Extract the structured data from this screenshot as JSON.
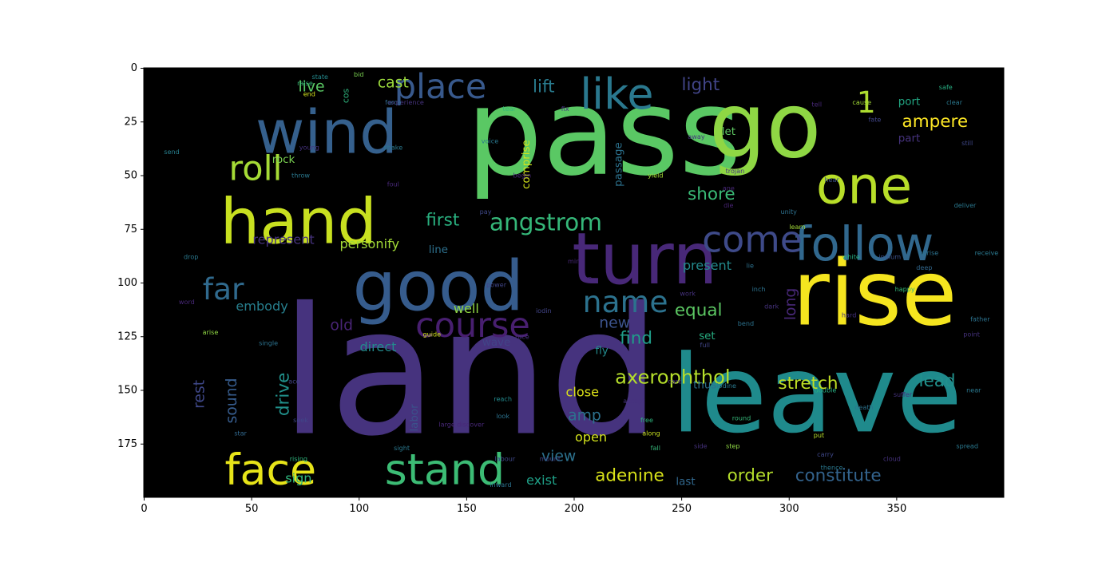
{
  "chart_data": {
    "type": "wordcloud",
    "xlim": [
      0,
      400
    ],
    "ylim": [
      200,
      0
    ],
    "x_ticks": [
      0,
      50,
      100,
      150,
      200,
      250,
      300,
      350
    ],
    "y_ticks": [
      0,
      25,
      50,
      75,
      100,
      125,
      150,
      175
    ],
    "background": "#000000",
    "colormap": "viridis",
    "words": [
      {
        "text": "pass",
        "x": 214,
        "y": 30,
        "size": 56,
        "color": "#5ac864"
      },
      {
        "text": "land",
        "x": 152,
        "y": 142,
        "size": 82,
        "color": "#46337e"
      },
      {
        "text": "leave",
        "x": 313,
        "y": 152,
        "size": 50,
        "color": "#1f8a8c"
      },
      {
        "text": "rise",
        "x": 340,
        "y": 105,
        "size": 42,
        "color": "#f5e51f"
      },
      {
        "text": "go",
        "x": 289,
        "y": 27,
        "size": 42,
        "color": "#8fd744"
      },
      {
        "text": "good",
        "x": 137,
        "y": 102,
        "size": 32,
        "color": "#365c8d"
      },
      {
        "text": "turn",
        "x": 233,
        "y": 89,
        "size": 33,
        "color": "#482878"
      },
      {
        "text": "wind",
        "x": 85,
        "y": 30,
        "size": 28,
        "color": "#35608d"
      },
      {
        "text": "hand",
        "x": 72,
        "y": 72,
        "size": 29,
        "color": "#c8e020"
      },
      {
        "text": "one",
        "x": 335,
        "y": 55,
        "size": 24,
        "color": "#b8de29"
      },
      {
        "text": "follow",
        "x": 335,
        "y": 82,
        "size": 22,
        "color": "#31688e"
      },
      {
        "text": "like",
        "x": 220,
        "y": 12,
        "size": 20,
        "color": "#2a788e"
      },
      {
        "text": "stand",
        "x": 140,
        "y": 187,
        "size": 20,
        "color": "#3cbc75"
      },
      {
        "text": "face",
        "x": 59,
        "y": 187,
        "size": 20,
        "color": "#e7e419"
      },
      {
        "text": "come",
        "x": 283,
        "y": 80,
        "size": 17,
        "color": "#3e4a89"
      },
      {
        "text": "roll",
        "x": 52,
        "y": 47,
        "size": 16,
        "color": "#a5db36"
      },
      {
        "text": "course",
        "x": 153,
        "y": 120,
        "size": 16,
        "color": "#481f70"
      },
      {
        "text": "place",
        "x": 138,
        "y": 9,
        "size": 16,
        "color": "#38598c"
      },
      {
        "text": "angstrom",
        "x": 187,
        "y": 72,
        "size": 11,
        "color": "#35b779"
      },
      {
        "text": "name",
        "x": 224,
        "y": 109,
        "size": 14,
        "color": "#2c728e"
      },
      {
        "text": "far",
        "x": 37,
        "y": 103,
        "size": 14,
        "color": "#306a8e"
      },
      {
        "text": "1",
        "x": 336,
        "y": 16,
        "size": 14,
        "color": "#addc30"
      },
      {
        "text": "axerophthol",
        "x": 246,
        "y": 144,
        "size": 9,
        "color": "#b5de2b"
      },
      {
        "text": "adenine",
        "x": 226,
        "y": 190,
        "size": 8,
        "color": "#d8e219"
      },
      {
        "text": "constitute",
        "x": 323,
        "y": 190,
        "size": 8,
        "color": "#33638d"
      },
      {
        "text": "stretch",
        "x": 309,
        "y": 147,
        "size": 8,
        "color": "#c0df25"
      },
      {
        "text": "ampere",
        "x": 368,
        "y": 25,
        "size": 8,
        "color": "#fde725"
      },
      {
        "text": "shore",
        "x": 264,
        "y": 59,
        "size": 8,
        "color": "#3aba76"
      },
      {
        "text": "first",
        "x": 139,
        "y": 71,
        "size": 8,
        "color": "#29af7f"
      },
      {
        "text": "equal",
        "x": 258,
        "y": 113,
        "size": 8,
        "color": "#5cc863"
      },
      {
        "text": "find",
        "x": 229,
        "y": 126,
        "size": 8,
        "color": "#1f9e89"
      },
      {
        "text": "order",
        "x": 282,
        "y": 190,
        "size": 8,
        "color": "#b4de2c"
      },
      {
        "text": "lead",
        "x": 369,
        "y": 146,
        "size": 8,
        "color": "#21918c"
      },
      {
        "text": "lift",
        "x": 186,
        "y": 9,
        "size": 8,
        "color": "#297b8e"
      },
      {
        "text": "light",
        "x": 259,
        "y": 8,
        "size": 8,
        "color": "#414487"
      },
      {
        "text": "cast",
        "x": 116,
        "y": 7,
        "size": 7,
        "color": "#9bd93c"
      },
      {
        "text": "live",
        "x": 78,
        "y": 9,
        "size": 7,
        "color": "#5ac864"
      },
      {
        "text": "view",
        "x": 193,
        "y": 181,
        "size": 7,
        "color": "#2c728e"
      },
      {
        "text": "amp",
        "x": 205,
        "y": 162,
        "size": 7,
        "color": "#2d718e"
      },
      {
        "text": "new",
        "x": 219,
        "y": 119,
        "size": 7,
        "color": "#3b528b"
      },
      {
        "text": "old",
        "x": 92,
        "y": 120,
        "size": 7,
        "color": "#482475"
      },
      {
        "text": "embody",
        "x": 55,
        "y": 111,
        "size": 6,
        "color": "#277f8e"
      },
      {
        "text": "personify",
        "x": 105,
        "y": 82,
        "size": 6,
        "color": "#a2da37"
      },
      {
        "text": "represent",
        "x": 65,
        "y": 80,
        "size": 6,
        "color": "#46327e"
      },
      {
        "text": "present",
        "x": 262,
        "y": 92,
        "size": 6,
        "color": "#238a8d"
      },
      {
        "text": "close",
        "x": 204,
        "y": 151,
        "size": 6,
        "color": "#dde318"
      },
      {
        "text": "open",
        "x": 208,
        "y": 172,
        "size": 6,
        "color": "#d2e21b"
      },
      {
        "text": "exist",
        "x": 185,
        "y": 192,
        "size": 6,
        "color": "#1fa188"
      },
      {
        "text": "sign",
        "x": 72,
        "y": 191,
        "size": 6,
        "color": "#2eb37c"
      },
      {
        "text": "direct",
        "x": 109,
        "y": 130,
        "size": 6,
        "color": "#238a8d"
      },
      {
        "text": "well",
        "x": 150,
        "y": 112,
        "size": 6,
        "color": "#90d743"
      },
      {
        "text": "line",
        "x": 137,
        "y": 85,
        "size": 5,
        "color": "#2d718e"
      },
      {
        "text": "port",
        "x": 356,
        "y": 16,
        "size": 5,
        "color": "#22a884"
      },
      {
        "text": "part",
        "x": 356,
        "y": 33,
        "size": 5,
        "color": "#46327e"
      },
      {
        "text": "thus",
        "x": 261,
        "y": 148,
        "size": 5,
        "color": "#2d718e"
      },
      {
        "text": "set",
        "x": 262,
        "y": 125,
        "size": 5,
        "color": "#27ad81"
      },
      {
        "text": "rock",
        "x": 65,
        "y": 43,
        "size": 5,
        "color": "#7ad151"
      },
      {
        "text": "last",
        "x": 252,
        "y": 193,
        "size": 5,
        "color": "#31688e"
      },
      {
        "text": "wave",
        "x": 164,
        "y": 128,
        "size": 5,
        "color": "#414487"
      },
      {
        "text": "fly",
        "x": 213,
        "y": 132,
        "size": 5,
        "color": "#238a8d"
      },
      {
        "text": "let",
        "x": 272,
        "y": 30,
        "size": 5,
        "color": "#5ec962"
      },
      {
        "text": "long",
        "x": 301,
        "y": 110,
        "size": 7,
        "color": "#482878",
        "rotate": true
      },
      {
        "text": "rest",
        "x": 26,
        "y": 152,
        "size": 7,
        "color": "#3f4889",
        "rotate": true
      },
      {
        "text": "sound",
        "x": 41,
        "y": 155,
        "size": 7,
        "color": "#365c8d",
        "rotate": true
      },
      {
        "text": "drive",
        "x": 65,
        "y": 152,
        "size": 8,
        "color": "#21918c",
        "rotate": true
      },
      {
        "text": "comprise",
        "x": 178,
        "y": 45,
        "size": 5,
        "color": "#d2e21b",
        "rotate": true
      },
      {
        "text": "passage",
        "x": 221,
        "y": 45,
        "size": 5,
        "color": "#2c728e",
        "rotate": true
      },
      {
        "text": "labor",
        "x": 126,
        "y": 163,
        "size": 5,
        "color": "#3b528b",
        "rotate": true
      },
      {
        "text": "cos",
        "x": 94,
        "y": 13,
        "size": 4,
        "color": "#2eb37c",
        "rotate": true
      },
      {
        "text": "experience",
        "x": 122,
        "y": 16,
        "size": 3,
        "color": "#46337e"
      },
      {
        "text": "force",
        "x": 116,
        "y": 16,
        "size": 3,
        "color": "#31688e"
      },
      {
        "text": "fix",
        "x": 196,
        "y": 19,
        "size": 3,
        "color": "#46337e"
      },
      {
        "text": "tear",
        "x": 170,
        "y": 19,
        "size": 3,
        "color": "#35b779"
      },
      {
        "text": "tell",
        "x": 313,
        "y": 17,
        "size": 3,
        "color": "#482878"
      },
      {
        "text": "cause",
        "x": 334,
        "y": 16,
        "size": 3,
        "color": "#a2da37"
      },
      {
        "text": "clear",
        "x": 377,
        "y": 16,
        "size": 3,
        "color": "#2a788e"
      },
      {
        "text": "safe",
        "x": 373,
        "y": 9,
        "size": 3,
        "color": "#27ad81"
      },
      {
        "text": "fate",
        "x": 340,
        "y": 24,
        "size": 3,
        "color": "#404588"
      },
      {
        "text": "end",
        "x": 77,
        "y": 12,
        "size": 3,
        "color": "#d2e21b"
      },
      {
        "text": "raise",
        "x": 75,
        "y": 7,
        "size": 3,
        "color": "#35b779"
      },
      {
        "text": "state",
        "x": 82,
        "y": 4,
        "size": 3,
        "color": "#238a8d"
      },
      {
        "text": "bid",
        "x": 100,
        "y": 3,
        "size": 3,
        "color": "#7ad151"
      },
      {
        "text": "send",
        "x": 13,
        "y": 39,
        "size": 3,
        "color": "#277f8e"
      },
      {
        "text": "young",
        "x": 77,
        "y": 37,
        "size": 3,
        "color": "#46327e"
      },
      {
        "text": "shake",
        "x": 116,
        "y": 37,
        "size": 3,
        "color": "#2a788e"
      },
      {
        "text": "voice",
        "x": 161,
        "y": 34,
        "size": 3,
        "color": "#2a788e"
      },
      {
        "text": "away",
        "x": 257,
        "y": 32,
        "size": 3,
        "color": "#46327e"
      },
      {
        "text": "still",
        "x": 383,
        "y": 35,
        "size": 3,
        "color": "#3f4889"
      },
      {
        "text": "hear",
        "x": 320,
        "y": 52,
        "size": 3,
        "color": "#3b528b"
      },
      {
        "text": "throw",
        "x": 73,
        "y": 50,
        "size": 3,
        "color": "#2a788e"
      },
      {
        "text": "foul",
        "x": 116,
        "y": 54,
        "size": 3,
        "color": "#482878"
      },
      {
        "text": "begin",
        "x": 176,
        "y": 50,
        "size": 3,
        "color": "#482878"
      },
      {
        "text": "yield",
        "x": 238,
        "y": 50,
        "size": 3,
        "color": "#a5db36"
      },
      {
        "text": "trojan",
        "x": 275,
        "y": 48,
        "size": 3,
        "color": "#46327e"
      },
      {
        "text": "die",
        "x": 272,
        "y": 64,
        "size": 3,
        "color": "#482475"
      },
      {
        "text": "ane",
        "x": 272,
        "y": 56,
        "size": 3,
        "color": "#482878"
      },
      {
        "text": "unity",
        "x": 300,
        "y": 67,
        "size": 3,
        "color": "#2d718e"
      },
      {
        "text": "learn",
        "x": 304,
        "y": 74,
        "size": 3,
        "color": "#a2da37"
      },
      {
        "text": "deliver",
        "x": 382,
        "y": 64,
        "size": 3,
        "color": "#2a788e"
      },
      {
        "text": "pay",
        "x": 159,
        "y": 67,
        "size": 3,
        "color": "#3f4889"
      },
      {
        "text": "drop",
        "x": 22,
        "y": 88,
        "size": 3,
        "color": "#2a788e"
      },
      {
        "text": "mind",
        "x": 201,
        "y": 90,
        "size": 3,
        "color": "#482878"
      },
      {
        "text": "lie",
        "x": 282,
        "y": 92,
        "size": 3,
        "color": "#2d718e"
      },
      {
        "text": "white",
        "x": 329,
        "y": 88,
        "size": 3,
        "color": "#27ad81"
      },
      {
        "text": "indium",
        "x": 347,
        "y": 88,
        "size": 3,
        "color": "#3b528b"
      },
      {
        "text": "uprise",
        "x": 365,
        "y": 86,
        "size": 3,
        "color": "#2c728e"
      },
      {
        "text": "receive",
        "x": 392,
        "y": 86,
        "size": 3,
        "color": "#2a788e"
      },
      {
        "text": "deep",
        "x": 363,
        "y": 93,
        "size": 3,
        "color": "#31688e"
      },
      {
        "text": "top",
        "x": 206,
        "y": 98,
        "size": 3,
        "color": "#482878"
      },
      {
        "text": "power",
        "x": 164,
        "y": 101,
        "size": 3,
        "color": "#404588"
      },
      {
        "text": "work",
        "x": 253,
        "y": 105,
        "size": 3,
        "color": "#46327e"
      },
      {
        "text": "inch",
        "x": 286,
        "y": 103,
        "size": 3,
        "color": "#2c728e"
      },
      {
        "text": "happy",
        "x": 354,
        "y": 103,
        "size": 3,
        "color": "#35b779"
      },
      {
        "text": "word",
        "x": 20,
        "y": 109,
        "size": 3,
        "color": "#482878"
      },
      {
        "text": "dark",
        "x": 292,
        "y": 111,
        "size": 3,
        "color": "#46327e"
      },
      {
        "text": "hard",
        "x": 328,
        "y": 115,
        "size": 3,
        "color": "#46327e"
      },
      {
        "text": "father",
        "x": 389,
        "y": 117,
        "size": 3,
        "color": "#2c728e"
      },
      {
        "text": "iodin",
        "x": 186,
        "y": 113,
        "size": 3,
        "color": "#414487"
      },
      {
        "text": "bend",
        "x": 280,
        "y": 119,
        "size": 3,
        "color": "#2c728e"
      },
      {
        "text": "point",
        "x": 385,
        "y": 124,
        "size": 3,
        "color": "#46327e"
      },
      {
        "text": "arise",
        "x": 31,
        "y": 123,
        "size": 3,
        "color": "#8fd744"
      },
      {
        "text": "single",
        "x": 58,
        "y": 128,
        "size": 3,
        "color": "#2c728e"
      },
      {
        "text": "guide",
        "x": 134,
        "y": 124,
        "size": 3,
        "color": "#d2e21b"
      },
      {
        "text": "race",
        "x": 176,
        "y": 125,
        "size": 3,
        "color": "#46327e"
      },
      {
        "text": "full",
        "x": 261,
        "y": 129,
        "size": 3,
        "color": "#414487"
      },
      {
        "text": "ace",
        "x": 70,
        "y": 146,
        "size": 3,
        "color": "#414487"
      },
      {
        "text": "care",
        "x": 247,
        "y": 146,
        "size": 3,
        "color": "#46327e"
      },
      {
        "text": "iodine",
        "x": 271,
        "y": 148,
        "size": 3,
        "color": "#2a788e"
      },
      {
        "text": "double",
        "x": 317,
        "y": 150,
        "size": 3,
        "color": "#27ad81"
      },
      {
        "text": "near",
        "x": 386,
        "y": 150,
        "size": 3,
        "color": "#2a788e"
      },
      {
        "text": "suffer",
        "x": 353,
        "y": 152,
        "size": 3,
        "color": "#46327e"
      },
      {
        "text": "accept",
        "x": 228,
        "y": 155,
        "size": 3,
        "color": "#46327e"
      },
      {
        "text": "death",
        "x": 335,
        "y": 158,
        "size": 3,
        "color": "#2c728e"
      },
      {
        "text": "reach",
        "x": 167,
        "y": 154,
        "size": 3,
        "color": "#238a8d"
      },
      {
        "text": "look",
        "x": 167,
        "y": 162,
        "size": 3,
        "color": "#2c728e"
      },
      {
        "text": "free",
        "x": 234,
        "y": 164,
        "size": 3,
        "color": "#2eb37c"
      },
      {
        "text": "seek",
        "x": 73,
        "y": 164,
        "size": 3,
        "color": "#404588"
      },
      {
        "text": "star",
        "x": 45,
        "y": 170,
        "size": 3,
        "color": "#31688e"
      },
      {
        "text": "round",
        "x": 278,
        "y": 163,
        "size": 3,
        "color": "#35b779"
      },
      {
        "text": "along",
        "x": 236,
        "y": 170,
        "size": 3,
        "color": "#c8e020"
      },
      {
        "text": "sight",
        "x": 120,
        "y": 177,
        "size": 3,
        "color": "#2a788e"
      },
      {
        "text": "step",
        "x": 274,
        "y": 176,
        "size": 3,
        "color": "#8fd744"
      },
      {
        "text": "side",
        "x": 259,
        "y": 176,
        "size": 3,
        "color": "#46327e"
      },
      {
        "text": "put",
        "x": 314,
        "y": 171,
        "size": 3,
        "color": "#b8de29"
      },
      {
        "text": "fall",
        "x": 238,
        "y": 177,
        "size": 3,
        "color": "#35b779"
      },
      {
        "text": "carry",
        "x": 317,
        "y": 180,
        "size": 3,
        "color": "#3f4889"
      },
      {
        "text": "cloud",
        "x": 348,
        "y": 182,
        "size": 3,
        "color": "#46327e"
      },
      {
        "text": "spread",
        "x": 383,
        "y": 176,
        "size": 3,
        "color": "#2a788e"
      },
      {
        "text": "rising",
        "x": 72,
        "y": 182,
        "size": 3,
        "color": "#2eb37c"
      },
      {
        "text": "labour",
        "x": 168,
        "y": 182,
        "size": 3,
        "color": "#3f4889"
      },
      {
        "text": "mount",
        "x": 189,
        "y": 182,
        "size": 3,
        "color": "#404588"
      },
      {
        "text": "thence",
        "x": 320,
        "y": 186,
        "size": 3,
        "color": "#2a788e"
      },
      {
        "text": "inward",
        "x": 166,
        "y": 194,
        "size": 3,
        "color": "#2c728e"
      },
      {
        "text": "large",
        "x": 141,
        "y": 166,
        "size": 3,
        "color": "#482878"
      },
      {
        "text": "discover",
        "x": 152,
        "y": 166,
        "size": 3,
        "color": "#482878"
      }
    ]
  }
}
